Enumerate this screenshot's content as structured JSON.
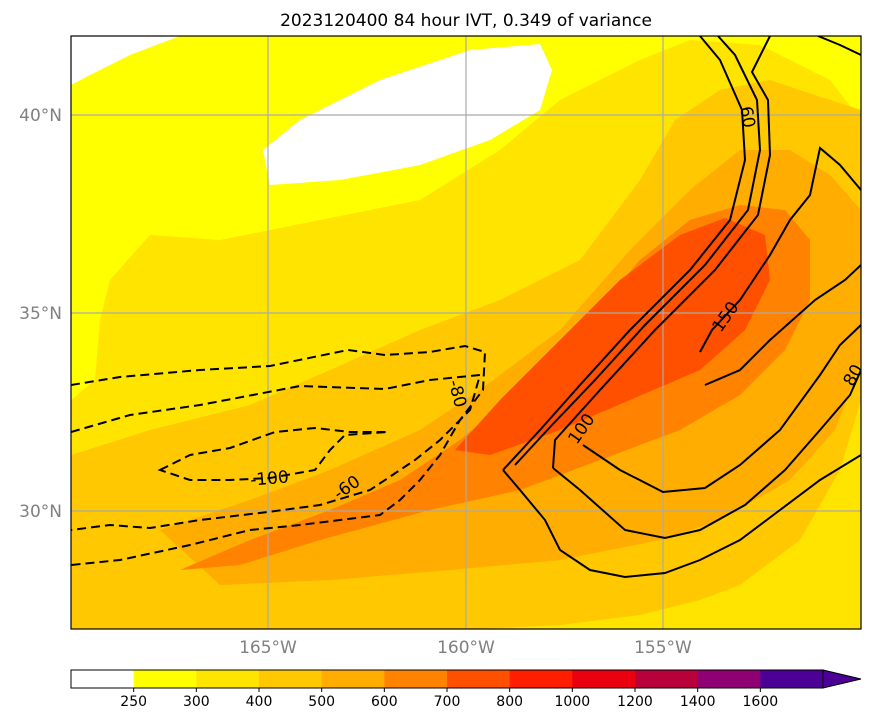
{
  "title": "2023120400 84 hour IVT, 0.349 of variance",
  "map": {
    "lon_labels": [
      "165°W",
      "160°W",
      "155°W"
    ],
    "lat_labels": [
      "40°N",
      "35°N",
      "30°N"
    ],
    "gridlines": true,
    "gridline_color": "#aaaaaa"
  },
  "colorbar": {
    "ticks": [
      "250",
      "300",
      "400",
      "500",
      "600",
      "700",
      "800",
      "1000",
      "1200",
      "1400",
      "1600"
    ],
    "colors": [
      "#ffffff",
      "#ffff00",
      "#ffe400",
      "#ffc800",
      "#ffad00",
      "#ff8200",
      "#ff5000",
      "#ff1e00",
      "#eb0010",
      "#b8003a",
      "#900075",
      "#4c0095"
    ],
    "extend": "max"
  },
  "contour_labels": [
    {
      "text": "60",
      "style": "solid"
    },
    {
      "text": "150",
      "style": "solid"
    },
    {
      "text": "100",
      "style": "solid"
    },
    {
      "text": "80",
      "style": "solid"
    },
    {
      "text": "-80",
      "style": "dashed"
    },
    {
      "text": "-100",
      "style": "dashed"
    },
    {
      "text": "-60",
      "style": "dashed"
    }
  ]
}
